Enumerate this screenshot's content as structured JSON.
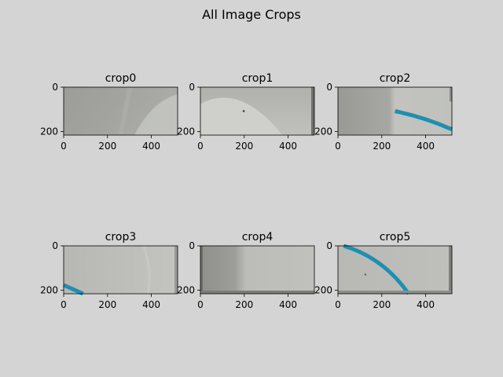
{
  "figure": {
    "title": "All Image Crops"
  },
  "chart_data": {
    "type": "image-grid",
    "title": "All Image Crops",
    "grid": {
      "rows": 2,
      "cols": 3
    },
    "colors": {
      "background": "#d4d4d4",
      "crop_base": "#b9bab5",
      "shadow": "#8e8e8a",
      "blue_line": "#1f8fb0"
    },
    "panels": [
      {
        "title": "crop0",
        "xticks": [
          0,
          200,
          400
        ],
        "yticks": [
          0,
          200
        ],
        "xlim": [
          0,
          520
        ],
        "ylim": [
          216,
          0
        ],
        "content": "gray-left-light-dotted-curve-right"
      },
      {
        "title": "crop1",
        "xticks": [
          0,
          200,
          400
        ],
        "yticks": [
          0,
          200
        ],
        "xlim": [
          0,
          520
        ],
        "ylim": [
          216,
          0
        ],
        "content": "light-arc-with-dark-dot"
      },
      {
        "title": "crop2",
        "xticks": [
          0,
          200,
          400
        ],
        "yticks": [
          0,
          200
        ],
        "xlim": [
          0,
          520
        ],
        "ylim": [
          216,
          0
        ],
        "content": "gray-left-blue-line-right"
      },
      {
        "title": "crop3",
        "xticks": [
          0,
          200,
          400
        ],
        "yticks": [
          0,
          200
        ],
        "xlim": [
          0,
          520
        ],
        "ylim": [
          216,
          0
        ],
        "content": "light-blue-line-bottom-left"
      },
      {
        "title": "crop4",
        "xticks": [
          0,
          200,
          400
        ],
        "yticks": [
          0,
          200
        ],
        "xlim": [
          0,
          520
        ],
        "ylim": [
          216,
          0
        ],
        "content": "dark-diagonal-left-light-right"
      },
      {
        "title": "crop5",
        "xticks": [
          0,
          200,
          400
        ],
        "yticks": [
          0,
          200
        ],
        "xlim": [
          0,
          520
        ],
        "ylim": [
          216,
          0
        ],
        "content": "blue-diagonal-curve"
      }
    ]
  }
}
